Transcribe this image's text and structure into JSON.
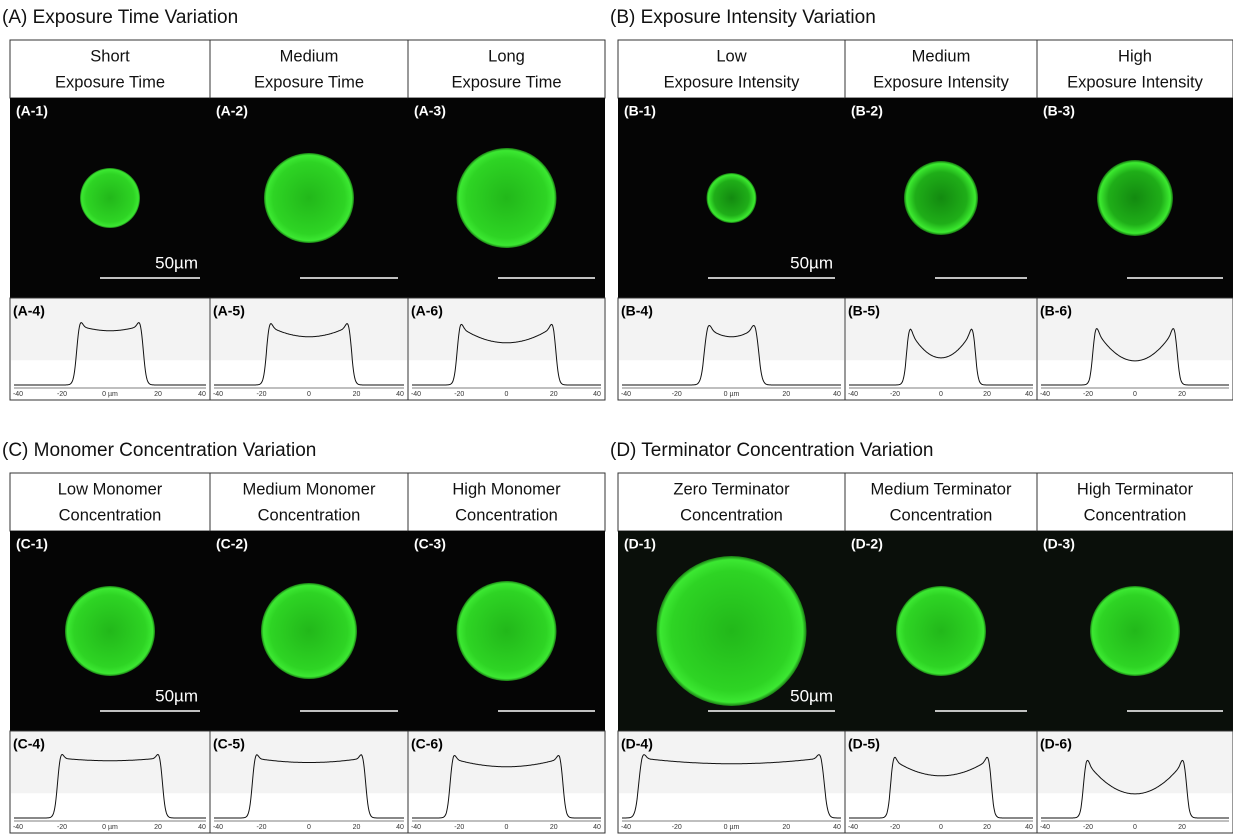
{
  "panels": [
    {
      "title": "(A) Exposure Time Variation",
      "scale_bar_label": "50µm",
      "columns": [
        {
          "header": [
            "Short",
            "Exposure Time"
          ],
          "image_label": "(A-1)",
          "profile_label": "(A-4)",
          "profile_ticks": [
            "-40",
            "-20",
            "0 µm",
            "20",
            "40"
          ]
        },
        {
          "header": [
            "Medium",
            "Exposure Time"
          ],
          "image_label": "(A-2)",
          "profile_label": "(A-5)",
          "profile_ticks": [
            "-40",
            "-20",
            "0",
            "20",
            "40"
          ]
        },
        {
          "header": [
            "Long",
            "Exposure Time"
          ],
          "image_label": "(A-3)",
          "profile_label": "(A-6)",
          "profile_ticks": [
            "-40",
            "-20",
            "0",
            "20",
            "40"
          ]
        }
      ]
    },
    {
      "title": "(B) Exposure Intensity Variation",
      "scale_bar_label": "50µm",
      "columns": [
        {
          "header": [
            "Low",
            "Exposure Intensity"
          ],
          "image_label": "(B-1)",
          "profile_label": "(B-4)",
          "profile_ticks": [
            "-40",
            "-20",
            "0 µm",
            "20",
            "40"
          ]
        },
        {
          "header": [
            "Medium",
            "Exposure Intensity"
          ],
          "image_label": "(B-2)",
          "profile_label": "(B-5)",
          "profile_ticks": [
            "-40",
            "-20",
            "0",
            "20",
            "40"
          ]
        },
        {
          "header": [
            "High",
            "Exposure Intensity"
          ],
          "image_label": "(B-3)",
          "profile_label": "(B-6)",
          "profile_ticks": [
            "-40",
            "-20",
            "0",
            "20"
          ]
        }
      ]
    },
    {
      "title": "(C) Monomer Concentration Variation",
      "scale_bar_label": "50µm",
      "columns": [
        {
          "header": [
            "Low Monomer",
            "Concentration"
          ],
          "image_label": "(C-1)",
          "profile_label": "(C-4)",
          "profile_ticks": [
            "-40",
            "-20",
            "0 µm",
            "20",
            "40"
          ]
        },
        {
          "header": [
            "Medium Monomer",
            "Concentration"
          ],
          "image_label": "(C-2)",
          "profile_label": "(C-5)",
          "profile_ticks": [
            "-40",
            "-20",
            "0",
            "20",
            "40"
          ]
        },
        {
          "header": [
            "High Monomer",
            "Concentration"
          ],
          "image_label": "(C-3)",
          "profile_label": "(C-6)",
          "profile_ticks": [
            "-40",
            "-20",
            "0",
            "20",
            "40"
          ]
        }
      ]
    },
    {
      "title": "(D) Terminator Concentration Variation",
      "scale_bar_label": "50µm",
      "columns": [
        {
          "header": [
            "Zero Terminator",
            "Concentration"
          ],
          "image_label": "(D-1)",
          "profile_label": "(D-4)",
          "profile_ticks": [
            "-40",
            "-20",
            "0 µm",
            "20",
            "40"
          ]
        },
        {
          "header": [
            "Medium Terminator",
            "Concentration"
          ],
          "image_label": "(D-2)",
          "profile_label": "(D-5)",
          "profile_ticks": [
            "-40",
            "-20",
            "0",
            "20",
            "40"
          ]
        },
        {
          "header": [
            "High Terminator",
            "Concentration"
          ],
          "image_label": "(D-3)",
          "profile_label": "(D-6)",
          "profile_ticks": [
            "-40",
            "-20",
            "0",
            "20"
          ]
        }
      ]
    }
  ]
}
